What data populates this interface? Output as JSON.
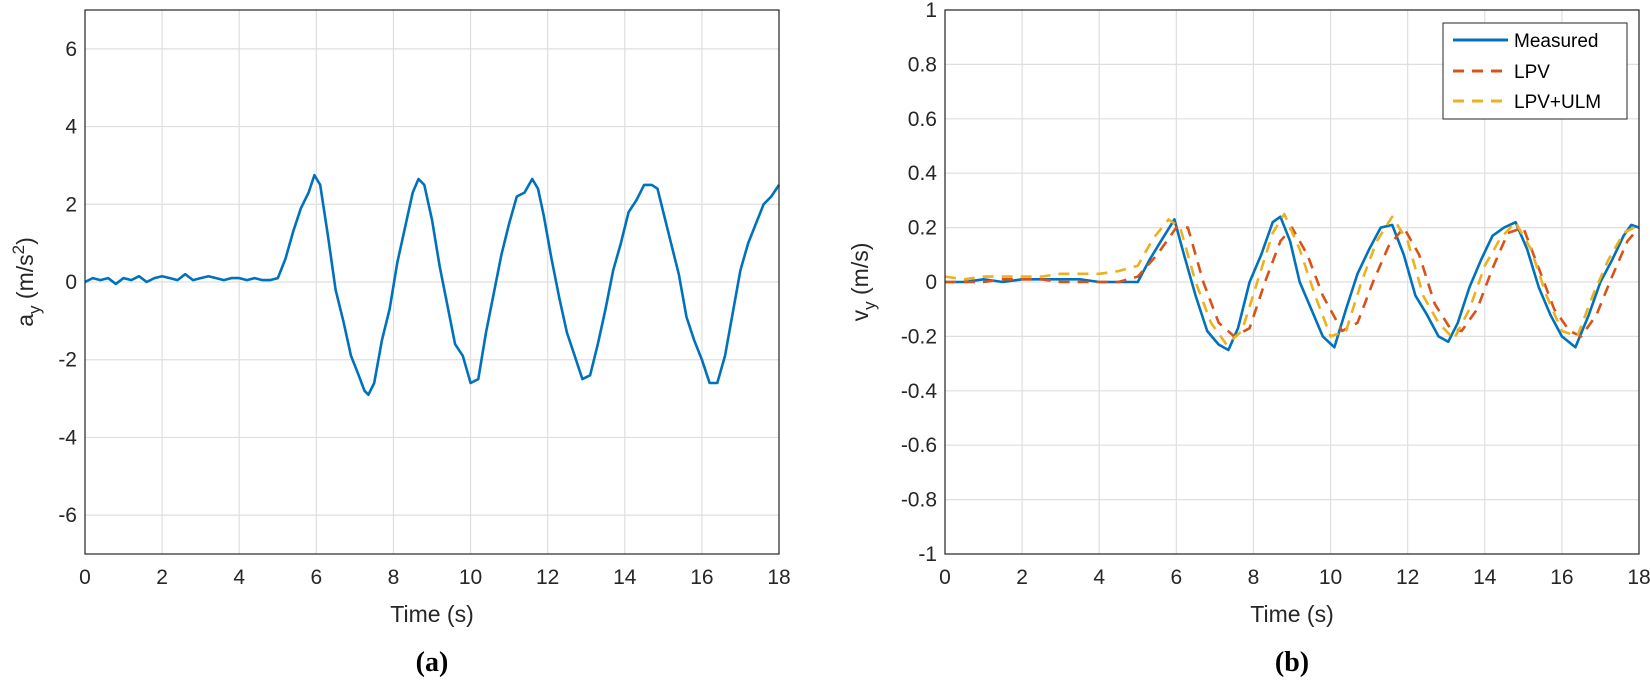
{
  "chart_data": [
    {
      "type": "line",
      "panel_label": "(a)",
      "xlabel": "Time (s)",
      "ylabel_main": "a",
      "ylabel_sub": "y",
      "ylabel_unit_pre": " (m/s",
      "ylabel_unit_sup": "2",
      "ylabel_unit_post": ")",
      "xlim": [
        0,
        18
      ],
      "ylim": [
        -7,
        7
      ],
      "xticks": [
        0,
        2,
        4,
        6,
        8,
        10,
        12,
        14,
        16,
        18
      ],
      "yticks": [
        -6,
        -4,
        -2,
        0,
        2,
        4,
        6
      ],
      "xtick_labels": [
        "0",
        "2",
        "4",
        "6",
        "8",
        "10",
        "12",
        "14",
        "16",
        "18"
      ],
      "ytick_labels": [
        "-6",
        "-4",
        "-2",
        "0",
        "2",
        "4",
        "6"
      ],
      "grid": true,
      "series": [
        {
          "color": "#0072bd",
          "style": "solid",
          "x": [
            0,
            0.2,
            0.4,
            0.6,
            0.8,
            1.0,
            1.2,
            1.4,
            1.6,
            1.8,
            2.0,
            2.2,
            2.4,
            2.6,
            2.8,
            3.0,
            3.2,
            3.4,
            3.6,
            3.8,
            4.0,
            4.2,
            4.4,
            4.6,
            4.8,
            5.0,
            5.2,
            5.4,
            5.6,
            5.8,
            5.95,
            6.1,
            6.3,
            6.5,
            6.7,
            6.9,
            7.1,
            7.25,
            7.35,
            7.5,
            7.7,
            7.9,
            8.1,
            8.3,
            8.5,
            8.65,
            8.8,
            9.0,
            9.2,
            9.4,
            9.6,
            9.8,
            10.0,
            10.2,
            10.4,
            10.6,
            10.8,
            11.0,
            11.2,
            11.4,
            11.6,
            11.75,
            11.9,
            12.1,
            12.3,
            12.5,
            12.7,
            12.9,
            13.1,
            13.3,
            13.5,
            13.7,
            13.9,
            14.1,
            14.3,
            14.5,
            14.7,
            14.85,
            15.0,
            15.2,
            15.4,
            15.6,
            15.8,
            16.0,
            16.2,
            16.4,
            16.6,
            16.8,
            17.0,
            17.2,
            17.4,
            17.6,
            17.8,
            18.0
          ],
          "y": [
            0.0,
            0.1,
            0.05,
            0.1,
            -0.05,
            0.1,
            0.05,
            0.15,
            0.0,
            0.1,
            0.15,
            0.1,
            0.05,
            0.2,
            0.05,
            0.1,
            0.15,
            0.1,
            0.05,
            0.1,
            0.1,
            0.05,
            0.1,
            0.05,
            0.05,
            0.1,
            0.6,
            1.3,
            1.9,
            2.3,
            2.75,
            2.5,
            1.2,
            -0.2,
            -1.0,
            -1.9,
            -2.4,
            -2.8,
            -2.9,
            -2.6,
            -1.5,
            -0.7,
            0.5,
            1.4,
            2.3,
            2.65,
            2.5,
            1.6,
            0.4,
            -0.6,
            -1.6,
            -1.9,
            -2.6,
            -2.5,
            -1.3,
            -0.3,
            0.7,
            1.5,
            2.2,
            2.3,
            2.65,
            2.4,
            1.7,
            0.6,
            -0.4,
            -1.3,
            -1.9,
            -2.5,
            -2.4,
            -1.6,
            -0.7,
            0.3,
            1.0,
            1.8,
            2.1,
            2.5,
            2.5,
            2.4,
            1.8,
            1.0,
            0.2,
            -0.9,
            -1.5,
            -2.0,
            -2.6,
            -2.6,
            -1.9,
            -0.8,
            0.3,
            1.0,
            1.5,
            2.0,
            2.2,
            2.5
          ]
        }
      ]
    },
    {
      "type": "line",
      "panel_label": "(b)",
      "xlabel": "Time (s)",
      "ylabel_main": "v",
      "ylabel_sub": "y",
      "ylabel_unit_pre": " (m/s)",
      "xlim": [
        0,
        18
      ],
      "ylim": [
        -1,
        1
      ],
      "xticks": [
        0,
        2,
        4,
        6,
        8,
        10,
        12,
        14,
        16,
        18
      ],
      "yticks": [
        -1,
        -0.8,
        -0.6,
        -0.4,
        -0.2,
        0,
        0.2,
        0.4,
        0.6,
        0.8,
        1
      ],
      "xtick_labels": [
        "0",
        "2",
        "4",
        "6",
        "8",
        "10",
        "12",
        "14",
        "16",
        "18"
      ],
      "ytick_labels": [
        "-1",
        "-0.8",
        "-0.6",
        "-0.4",
        "-0.2",
        "0",
        "0.2",
        "0.4",
        "0.6",
        "0.8",
        "1"
      ],
      "grid": true,
      "legend_position": "top-right",
      "series": [
        {
          "name": "Measured",
          "color": "#0072bd",
          "style": "solid",
          "x": [
            0,
            0.5,
            1.0,
            1.5,
            2.0,
            2.5,
            3.0,
            3.5,
            4.0,
            4.5,
            5.0,
            5.3,
            5.6,
            5.95,
            6.2,
            6.5,
            6.8,
            7.1,
            7.35,
            7.6,
            7.9,
            8.2,
            8.5,
            8.7,
            8.95,
            9.2,
            9.5,
            9.8,
            10.1,
            10.4,
            10.7,
            11.0,
            11.3,
            11.6,
            11.9,
            12.2,
            12.5,
            12.8,
            13.05,
            13.3,
            13.6,
            13.9,
            14.2,
            14.5,
            14.8,
            15.1,
            15.4,
            15.7,
            16.0,
            16.35,
            16.7,
            17.0,
            17.3,
            17.6,
            17.8,
            18.0
          ],
          "y": [
            0.0,
            0.0,
            0.01,
            0.0,
            0.01,
            0.01,
            0.01,
            0.01,
            0.0,
            0.0,
            0.0,
            0.08,
            0.15,
            0.23,
            0.1,
            -0.05,
            -0.18,
            -0.23,
            -0.25,
            -0.17,
            0.0,
            0.1,
            0.22,
            0.24,
            0.15,
            0.0,
            -0.1,
            -0.2,
            -0.24,
            -0.1,
            0.03,
            0.12,
            0.2,
            0.21,
            0.1,
            -0.05,
            -0.12,
            -0.2,
            -0.22,
            -0.15,
            -0.02,
            0.08,
            0.17,
            0.2,
            0.22,
            0.12,
            -0.02,
            -0.12,
            -0.2,
            -0.24,
            -0.12,
            0.0,
            0.08,
            0.17,
            0.21,
            0.2
          ]
        },
        {
          "name": "LPV",
          "color": "#d95319",
          "style": "dashed",
          "x": [
            0,
            0.5,
            1.0,
            1.5,
            2.0,
            2.5,
            3.0,
            3.5,
            4.0,
            4.5,
            5.0,
            5.5,
            6.0,
            6.3,
            6.7,
            7.1,
            7.5,
            7.9,
            8.3,
            8.7,
            9.0,
            9.4,
            9.8,
            10.3,
            10.7,
            11.1,
            11.5,
            11.9,
            12.3,
            12.7,
            13.1,
            13.4,
            13.8,
            14.2,
            14.6,
            15.0,
            15.4,
            15.8,
            16.2,
            16.5,
            16.9,
            17.3,
            17.7,
            18.0
          ],
          "y": [
            0.0,
            0.0,
            0.0,
            0.01,
            0.01,
            0.01,
            0.0,
            0.0,
            0.0,
            0.0,
            0.02,
            0.1,
            0.2,
            0.2,
            0.0,
            -0.15,
            -0.2,
            -0.17,
            0.0,
            0.15,
            0.2,
            0.1,
            -0.05,
            -0.18,
            -0.15,
            0.0,
            0.13,
            0.2,
            0.1,
            -0.08,
            -0.17,
            -0.18,
            -0.1,
            0.05,
            0.18,
            0.2,
            0.05,
            -0.1,
            -0.18,
            -0.2,
            -0.12,
            0.02,
            0.15,
            0.2
          ]
        },
        {
          "name": "LPV+ULM",
          "color": "#edb120",
          "style": "dashed",
          "x": [
            0,
            0.5,
            1.0,
            1.5,
            2.0,
            2.5,
            3.0,
            3.5,
            4.0,
            4.5,
            5.0,
            5.4,
            5.8,
            6.1,
            6.5,
            6.9,
            7.3,
            7.7,
            8.1,
            8.5,
            8.8,
            9.2,
            9.6,
            10.0,
            10.4,
            10.8,
            11.2,
            11.6,
            12.0,
            12.4,
            12.8,
            13.2,
            13.6,
            14.0,
            14.4,
            14.8,
            15.2,
            15.6,
            16.0,
            16.4,
            16.8,
            17.2,
            17.6,
            18.0
          ],
          "y": [
            0.02,
            0.01,
            0.02,
            0.02,
            0.02,
            0.02,
            0.03,
            0.03,
            0.03,
            0.04,
            0.06,
            0.16,
            0.23,
            0.2,
            0.0,
            -0.15,
            -0.23,
            -0.18,
            0.0,
            0.18,
            0.25,
            0.12,
            -0.05,
            -0.2,
            -0.18,
            0.0,
            0.15,
            0.24,
            0.15,
            -0.05,
            -0.15,
            -0.21,
            -0.1,
            0.06,
            0.16,
            0.22,
            0.12,
            -0.05,
            -0.18,
            -0.2,
            -0.05,
            0.08,
            0.18,
            0.21
          ]
        }
      ]
    }
  ]
}
